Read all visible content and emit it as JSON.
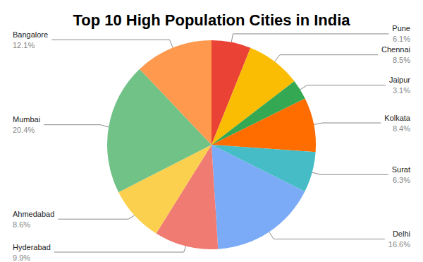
{
  "chart_data": {
    "type": "pie",
    "title": "Top 10 High Population Cities in India",
    "categories": [
      "Pune",
      "Chennai",
      "Jaipur",
      "Kolkata",
      "Surat",
      "Delhi",
      "Hyderabad",
      "Ahmedabad",
      "Mumbai",
      "Bangalore"
    ],
    "values": [
      6.1,
      8.5,
      3.1,
      8.4,
      6.3,
      16.6,
      9.9,
      8.6,
      20.4,
      12.1
    ],
    "value_labels": [
      "6.1%",
      "8.5%",
      "3.1%",
      "8.4%",
      "6.3%",
      "16.6%",
      "9.9%",
      "8.6%",
      "20.4%",
      "12.1%"
    ],
    "colors": [
      "#ea4335",
      "#fbbc04",
      "#34a853",
      "#ff6d01",
      "#46bdc6",
      "#7baaf7",
      "#f07b72",
      "#fcd04f",
      "#71c287",
      "#ff994d"
    ],
    "data_labels": true
  }
}
